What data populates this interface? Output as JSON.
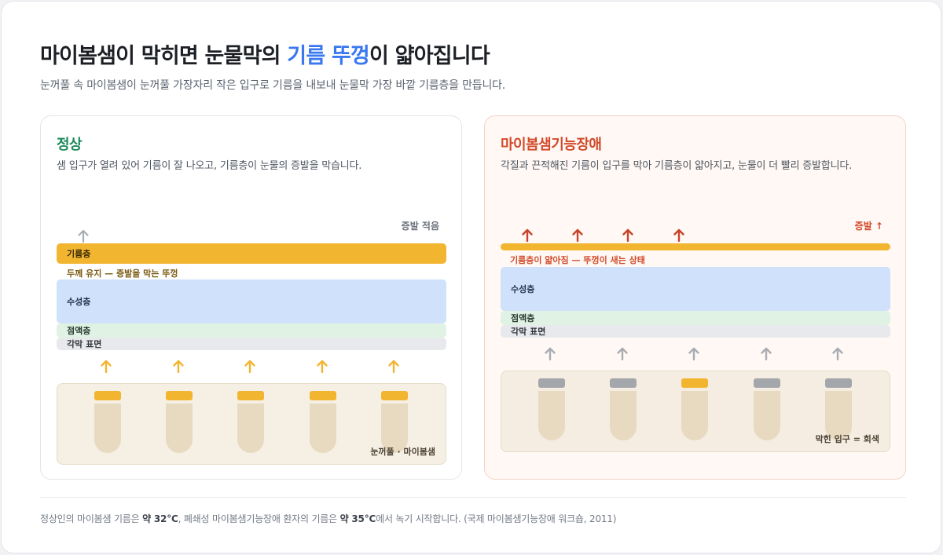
{
  "header": {
    "title_prefix": "마이봄샘이 막히면 눈물막의 ",
    "title_accent": "기름 뚜껑",
    "title_suffix": "이 얇아집니다",
    "subtitle": "눈꺼풀 속 마이봄샘이 눈꺼풀 가장자리 작은 입구로 기름을 내보내 눈물막 가장 바깥 기름층을 만듭니다."
  },
  "normal": {
    "title": "정상",
    "description": "샘 입구가 열려 있어 기름이 잘 나오고, 기름층이 눈물의 증발을 막습니다.",
    "evaporation_label": "증발 적음",
    "layers": {
      "lipid": "기름층",
      "aqueous": "수성층",
      "mucin": "점액층",
      "cornea": "각막 표면"
    },
    "lipid_note": "두께 유지 — 증발을 막는 뚜껑",
    "lid_label": "눈꺼풀 · 마이봄샘",
    "glands": [
      "open",
      "open",
      "open",
      "open",
      "open"
    ]
  },
  "mgd": {
    "title": "마이봄샘기능장애",
    "description": "각질과 끈적해진 기름이 입구를 막아 기름층이 얇아지고, 눈물이 더 빨리 증발합니다.",
    "evaporation_label": "증발 ↑",
    "layers": {
      "lipid": "",
      "aqueous": "수성층",
      "mucin": "점액층",
      "cornea": "각막 표면"
    },
    "lipid_note": "기름층이 얇아짐 — 뚜껑이 새는 상태",
    "lid_label": "막힌 입구 = 회색",
    "glands": [
      "blocked",
      "blocked",
      "open",
      "blocked",
      "blocked"
    ]
  },
  "colors": {
    "accent": "#3a78f0",
    "normal_title": "#1e8a5c",
    "mgd_title": "#d24a2a",
    "lipid": "#f2b530",
    "aqueous": "#cfe1fb",
    "mucin": "#dff2e4",
    "cornea": "#e8e9ec",
    "blocked": "#a3a6ab",
    "arrow_oil": "#f2b530",
    "arrow_gray": "#a9adb3",
    "arrow_red": "#c8432a"
  },
  "footnote": {
    "part1": "정상인의 마이봄샘 기름은 ",
    "temp_normal": "약 32°C",
    "part2": ", 폐쇄성 마이봄샘기능장애 환자의 기름은 ",
    "temp_mgd": "약 35°C",
    "part3": "에서 녹기 시작합니다. (국제 마이봄샘기능장애 워크숍, 2011)"
  }
}
